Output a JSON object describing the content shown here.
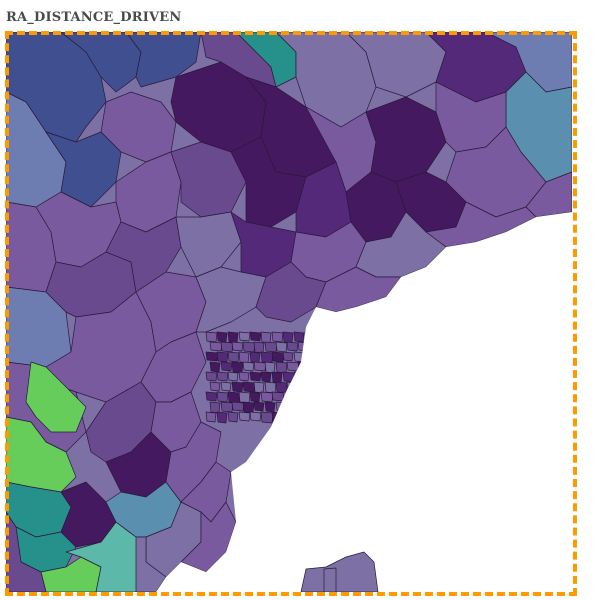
{
  "title": "RA_DISTANCE_DRIVEN",
  "map": {
    "colors": {
      "dark_purple": "#45195f",
      "purple": "#54297a",
      "mid_purple": "#6a4a8f",
      "light_purple": "#7a5a9e",
      "lavender": "#7c70a4",
      "blue": "#3f4f8f",
      "blue_grey": "#6d7db2",
      "steel_blue": "#5a8fb0",
      "teal": "#26918b",
      "light_teal": "#5cb8a8",
      "green": "#66cc5a",
      "lake": "#ffffff",
      "boundary": "#2a1a3a"
    }
  },
  "highlight": {
    "color": "#ff9900",
    "style": "dashed"
  }
}
